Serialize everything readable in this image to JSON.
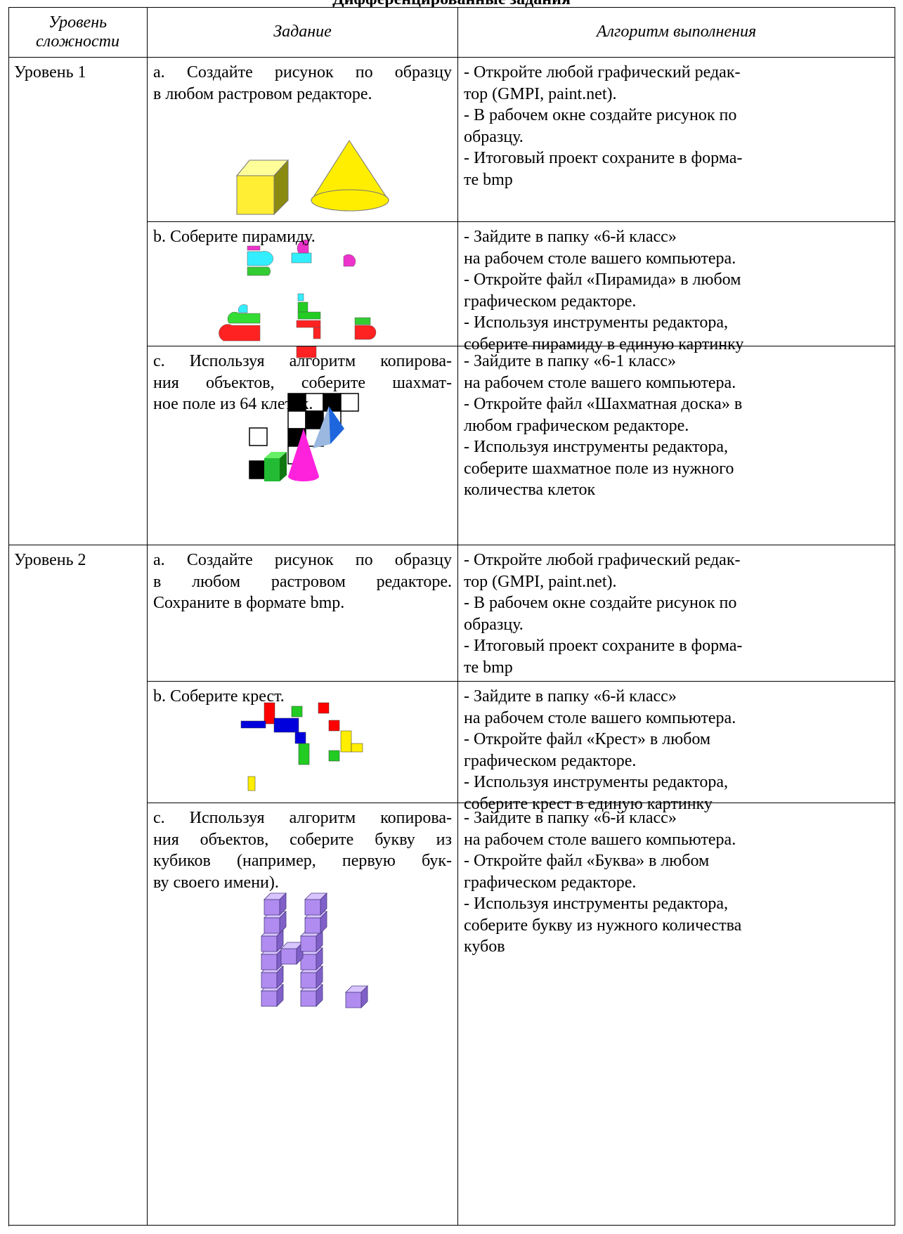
{
  "header": {
    "title": "Дифференцированные задания"
  },
  "table": {
    "columns": [
      [
        "Уровень",
        "сложности"
      ],
      [
        "Задание"
      ],
      [
        "Алгоритм выполнения"
      ]
    ],
    "levels": [
      {
        "label": "Уровень 1",
        "tasks": [
          {
            "task": [
              "a. Создайте рисунок по образцу",
              "в любом растровом редакторе."
            ],
            "algorithm": [
              "- Откройте любой графический редак-",
              "тор (GMPI, paint.net).",
              "- В рабочем окне создайте рисунок по",
              "образцу.",
              "- Итоговый проект сохраните в форма-",
              "те bmp"
            ]
          },
          {
            "task": [
              "b. Соберите пирамиду."
            ],
            "algorithm": [
              "- Зайдите в папку «6-й класс»",
              "на рабочем столе вашего компьютера.",
              "- Откройте файл «Пирамида» в любом",
              "графическом редакторе.",
              "- Используя инструменты редактора,",
              "соберите пирамиду в единую картинку"
            ]
          },
          {
            "task": [
              "c. Используя алгоритм копирова-",
              "ния объектов, соберите шахмат-",
              "ное поле из 64 клеток."
            ],
            "algorithm": [
              "- Зайдите в папку «6-1 класс»",
              "на рабочем столе вашего компьютера.",
              "- Откройте файл «Шахматная доска» в",
              "любом графическом редакторе.",
              "- Используя инструменты редактора,",
              "соберите шахматное поле из нужного",
              "количества клеток"
            ]
          }
        ]
      },
      {
        "label": "Уровень 2",
        "tasks": [
          {
            "task": [
              "a. Создайте рисунок по образцу",
              "в любом растровом редакторе.",
              "Сохраните в формате bmp."
            ],
            "algorithm": [
              "- Откройте любой графический редак-",
              "тор (GMPI, paint.net).",
              "- В рабочем окне создайте рисунок по",
              "образцу.",
              "- Итоговый проект сохраните в форма-",
              "те bmp"
            ]
          },
          {
            "task": [
              "b. Соберите крест."
            ],
            "algorithm": [
              "- Зайдите в папку «6-й класс»",
              "на рабочем столе вашего компьютера.",
              "- Откройте файл «Крест» в любом",
              "графическом редакторе.",
              "- Используя инструменты редактора,",
              "соберите крест в единую картинку"
            ]
          },
          {
            "task": [
              "c. Используя алгоритм копирова-",
              "ния объектов, соберите букву из",
              "кубиков (например, первую бук-",
              "ву своего имени)."
            ],
            "algorithm": [
              "- Зайдите в папку «6-й класс»",
              "на рабочем столе вашего компьютера.",
              "- Откройте файл «Буква» в любом",
              "графическом редакторе.",
              "- Используя инструменты редактора,",
              "соберите букву из нужного количества",
              "кубов"
            ]
          }
        ]
      }
    ]
  }
}
